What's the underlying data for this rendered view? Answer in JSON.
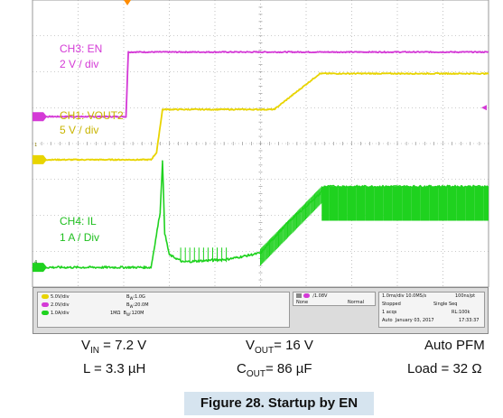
{
  "chart_data": {
    "type": "line",
    "title": "",
    "xlabel": "",
    "ylabel": "",
    "time_div": "1.0ms/div",
    "divisions": {
      "x": 10,
      "y": 8
    },
    "channels": [
      {
        "name": "CH3: EN",
        "scale": "2 V / div",
        "color": "#d43ad6",
        "points": [
          [
            0,
            4.75
          ],
          [
            2.05,
            4.75
          ],
          [
            2.1,
            6.55
          ],
          [
            10,
            6.55
          ]
        ]
      },
      {
        "name": "CH1: VOUT2",
        "scale": "5 V / div",
        "color": "#e8d400",
        "points": [
          [
            0,
            3.55
          ],
          [
            2.6,
            3.55
          ],
          [
            2.72,
            3.75
          ],
          [
            2.85,
            4.95
          ],
          [
            5.3,
            4.95
          ],
          [
            6.3,
            5.95
          ],
          [
            10,
            5.95
          ]
        ]
      },
      {
        "name": "CH4: IL",
        "scale": "1 A / Div",
        "color": "#1fd21f",
        "points": [
          [
            0,
            0.55
          ],
          [
            2.6,
            0.55
          ],
          [
            2.8,
            2.1
          ],
          [
            2.85,
            3.5
          ],
          [
            2.9,
            1.5
          ],
          [
            3.0,
            0.9
          ],
          [
            3.3,
            0.7
          ],
          [
            4.3,
            0.78
          ],
          [
            5.0,
            0.95
          ],
          [
            5.6,
            1.8
          ],
          [
            6.3,
            2.6
          ],
          [
            6.4,
            2.8
          ],
          [
            10,
            2.8
          ]
        ]
      }
    ],
    "markers": {
      "en": "EN",
      "ch1": "1",
      "ch4": "4"
    }
  },
  "status": {
    "ch1_scale": "5.0V/div",
    "ch3_scale": "2.0V/div",
    "ch4_scale": "1.0A/div",
    "bw1": "1.0G",
    "bw3": "20.0M",
    "imp": "1MΩ",
    "bw4": "120M",
    "trig_level": "1.08V",
    "trig_coupling": "None",
    "trig_mode": "Normal",
    "timebase": "1.0ms/div",
    "sample_rate": "10.0MS/s",
    "sample_interval": "100ns/pt",
    "acq_state": "Stopped",
    "acq_mode": "Single Seq",
    "acq_count": "1 acqs",
    "record_length": "RL:100k",
    "acq_type": "Auto",
    "date": "January 03, 2017",
    "time": "17:33:37"
  },
  "conditions": {
    "vin": "7.2 V",
    "vout": "16 V",
    "mode": "Auto PFM",
    "inductor": "3.3 µH",
    "cout": "86 µF",
    "load": "32 Ω"
  },
  "figure_caption": "Figure 28. Startup by EN"
}
